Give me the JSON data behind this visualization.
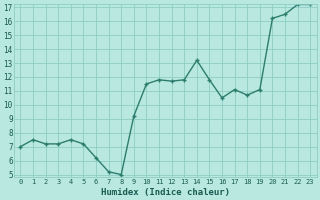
{
  "x": [
    0,
    1,
    2,
    3,
    4,
    5,
    6,
    7,
    8,
    9,
    10,
    11,
    12,
    13,
    14,
    15,
    16,
    17,
    18,
    19,
    20,
    21,
    22,
    23
  ],
  "y": [
    7,
    7.5,
    7.2,
    7.2,
    7.5,
    7.2,
    6.2,
    5.2,
    5.0,
    9.2,
    11.5,
    11.8,
    11.7,
    11.8,
    13.2,
    11.8,
    10.5,
    11.1,
    10.7,
    11.1,
    16.2,
    16.5,
    17.2,
    17.2
  ],
  "xlabel": "Humidex (Indice chaleur)",
  "ylim": [
    5,
    17
  ],
  "xlim": [
    -0.5,
    23.5
  ],
  "line_color": "#2d7d6e",
  "bg_color": "#b8e8e0",
  "grid_color": "#8ecec5",
  "text_color": "#1a5c52",
  "yticks": [
    5,
    6,
    7,
    8,
    9,
    10,
    11,
    12,
    13,
    14,
    15,
    16,
    17
  ],
  "xticks": [
    0,
    1,
    2,
    3,
    4,
    5,
    6,
    7,
    8,
    9,
    10,
    11,
    12,
    13,
    14,
    15,
    16,
    17,
    18,
    19,
    20,
    21,
    22,
    23
  ]
}
